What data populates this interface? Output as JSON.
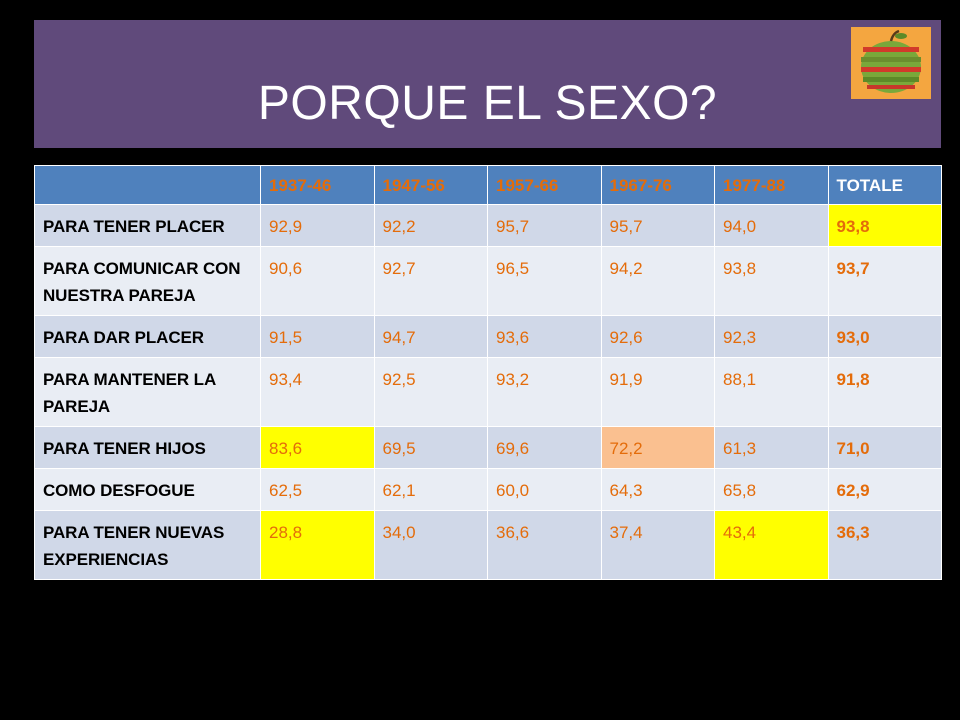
{
  "slide": {
    "title": "PORQUE EL SEXO?",
    "logo_icon": "apple-slices-icon",
    "colors": {
      "title_bar": "#604a7b",
      "header_row": "#4f81bd",
      "value_text": "#e46c0a",
      "row_odd": "#d0d8e8",
      "row_even": "#e9edf4",
      "highlight_yellow": "#ffff00",
      "highlight_peach": "#fac090"
    }
  },
  "table": {
    "headers": [
      "",
      "1937-46",
      "1947-56",
      "1957-66",
      "1967-76",
      "1977-88",
      "TOTALE"
    ],
    "rows": [
      {
        "label": "PARA TENER PLACER",
        "values": [
          "92,9",
          "92,2",
          "95,7",
          "95,7",
          "94,0"
        ],
        "total": "93,8"
      },
      {
        "label": "PARA COMUNICAR CON NUESTRA PAREJA",
        "values": [
          "90,6",
          "92,7",
          "96,5",
          "94,2",
          "93,8"
        ],
        "total": "93,7"
      },
      {
        "label": "PARA DAR PLACER",
        "values": [
          "91,5",
          "94,7",
          "93,6",
          "92,6",
          "92,3"
        ],
        "total": "93,0"
      },
      {
        "label": "PARA MANTENER LA PAREJA",
        "values": [
          "93,4",
          "92,5",
          "93,2",
          "91,9",
          "88,1"
        ],
        "total": "91,8"
      },
      {
        "label": "PARA TENER HIJOS",
        "values": [
          "83,6",
          "69,5",
          "69,6",
          "72,2",
          "61,3"
        ],
        "total": "71,0"
      },
      {
        "label": "COMO DESFOGUE",
        "values": [
          "62,5",
          "62,1",
          "60,0",
          "64,3",
          "65,8"
        ],
        "total": "62,9"
      },
      {
        "label": "PARA TENER NUEVAS EXPERIENCIAS",
        "values": [
          "28,8",
          "34,0",
          "36,6",
          "37,4",
          "43,4"
        ],
        "total": "36,3"
      }
    ]
  }
}
